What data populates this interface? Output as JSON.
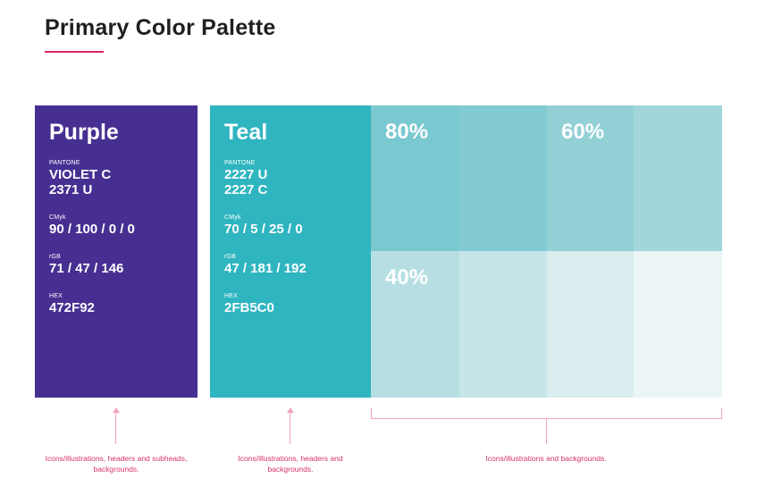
{
  "page": {
    "title": "Primary Color Palette"
  },
  "purple": {
    "name": "Purple",
    "color": "#472F92",
    "pantone_label": "PANTONE",
    "pantone_line1": "VIOLET C",
    "pantone_line2": "2371 U",
    "cmyk_label": "CMyk",
    "cmyk_value": "90 / 100 / 0 / 0",
    "rgb_label": "rGB",
    "rgb_value": "71 / 47 / 146",
    "hex_label": "HEX",
    "hex_value": "472F92"
  },
  "teal": {
    "name": "Teal",
    "color": "#2FB5C0",
    "pantone_label": "PANTONE",
    "pantone_line1": "2227 U",
    "pantone_line2": "2227 C",
    "cmyk_label": "CMyk",
    "cmyk_value": "70 / 5 / 25 / 0",
    "rgb_label": "rGB",
    "rgb_value": "47 / 181 / 192",
    "hex_label": "HEX",
    "hex_value": "2FB5C0"
  },
  "tints": [
    {
      "label": "80%",
      "color": "#7AC8D0"
    },
    {
      "label": "",
      "color": "#82CBD2"
    },
    {
      "label": "60%",
      "color": "#92D0D6"
    },
    {
      "label": "",
      "color": "#A2D6DB"
    },
    {
      "label": "40%",
      "color": "#B7DFE3"
    },
    {
      "label": "",
      "color": "#C5E5E8"
    },
    {
      "label": "",
      "color": "#DAEDEF"
    },
    {
      "label": "",
      "color": "#EBF5F6"
    }
  ],
  "notes": {
    "purple": "Icons/illustrations, headers and subheads, backgrounds.",
    "teal": "Icons/illustrations, headers and backgrounds.",
    "tints": "Icons/illustrations and backgrounds."
  }
}
